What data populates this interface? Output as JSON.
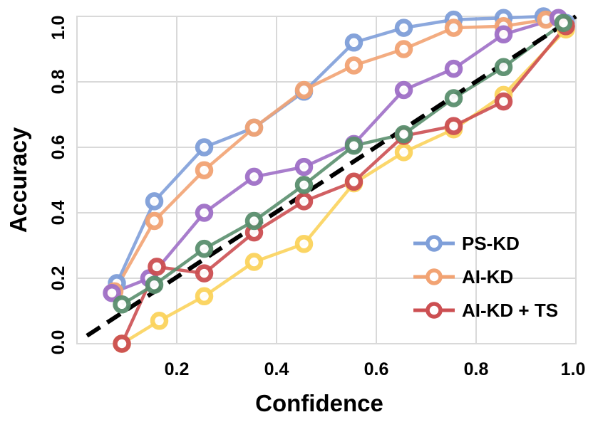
{
  "chart_data": {
    "type": "line",
    "title": "",
    "xlabel": "Confidence",
    "ylabel": "Accuracy",
    "xlim": [
      0.0,
      1.0
    ],
    "ylim": [
      0.0,
      1.0
    ],
    "xticks": [
      0.2,
      0.4,
      0.6,
      0.8,
      1.0
    ],
    "xtick_labels": [
      "0.2",
      "0.4",
      "0.6",
      "0.8",
      "1.0"
    ],
    "yticks": [
      0.0,
      0.2,
      0.4,
      0.6,
      0.8,
      1.0
    ],
    "ytick_labels": [
      "0.0",
      "0.2",
      "0.4",
      "0.6",
      "0.8",
      "1.0"
    ],
    "grid": true,
    "legend_position": "bottom-right",
    "reference_line": {
      "name": "perfect calibration",
      "x": [
        0.02,
        1.0
      ],
      "y": [
        0.02,
        1.0
      ],
      "color": "#000000",
      "style": "dashed"
    },
    "series": [
      {
        "name": "PS-KD",
        "legend": true,
        "color": "#7f9fd9",
        "x": [
          0.08,
          0.155,
          0.255,
          0.355,
          0.455,
          0.555,
          0.655,
          0.755,
          0.855,
          0.935,
          0.98
        ],
        "y": [
          0.185,
          0.435,
          0.6,
          0.66,
          0.77,
          0.92,
          0.965,
          0.99,
          0.995,
          1.0,
          0.98
        ]
      },
      {
        "name": "AI-KD",
        "legend": true,
        "color": "#f2a373",
        "x": [
          0.075,
          0.155,
          0.255,
          0.355,
          0.455,
          0.555,
          0.655,
          0.755,
          0.855,
          0.94,
          0.98
        ],
        "y": [
          0.16,
          0.375,
          0.53,
          0.66,
          0.775,
          0.85,
          0.9,
          0.965,
          0.97,
          0.99,
          0.97
        ]
      },
      {
        "name": "AI-KD + TS",
        "legend": true,
        "color": "#cc4f52",
        "x": [
          0.09,
          0.16,
          0.255,
          0.355,
          0.455,
          0.555,
          0.655,
          0.755,
          0.855,
          0.98
        ],
        "y": [
          0.0,
          0.235,
          0.215,
          0.34,
          0.435,
          0.495,
          0.635,
          0.665,
          0.74,
          0.97
        ]
      },
      {
        "name": "",
        "legend": false,
        "color": "#9f6fc7",
        "x": [
          0.07,
          0.145,
          0.255,
          0.355,
          0.455,
          0.555,
          0.655,
          0.755,
          0.855,
          0.965
        ],
        "y": [
          0.155,
          0.2,
          0.4,
          0.51,
          0.54,
          0.61,
          0.775,
          0.84,
          0.945,
          0.995
        ]
      },
      {
        "name": "",
        "legend": false,
        "color": "#5a8f6e",
        "x": [
          0.09,
          0.155,
          0.255,
          0.355,
          0.455,
          0.555,
          0.655,
          0.755,
          0.855,
          0.975
        ],
        "y": [
          0.12,
          0.18,
          0.29,
          0.375,
          0.485,
          0.605,
          0.64,
          0.75,
          0.845,
          0.98
        ]
      },
      {
        "name": "",
        "legend": false,
        "color": "#fbd35c",
        "x": [
          0.09,
          0.165,
          0.255,
          0.355,
          0.455,
          0.555,
          0.655,
          0.755,
          0.855,
          0.98
        ],
        "y": [
          0.0,
          0.07,
          0.145,
          0.25,
          0.305,
          0.49,
          0.585,
          0.655,
          0.76,
          0.96
        ]
      }
    ]
  }
}
